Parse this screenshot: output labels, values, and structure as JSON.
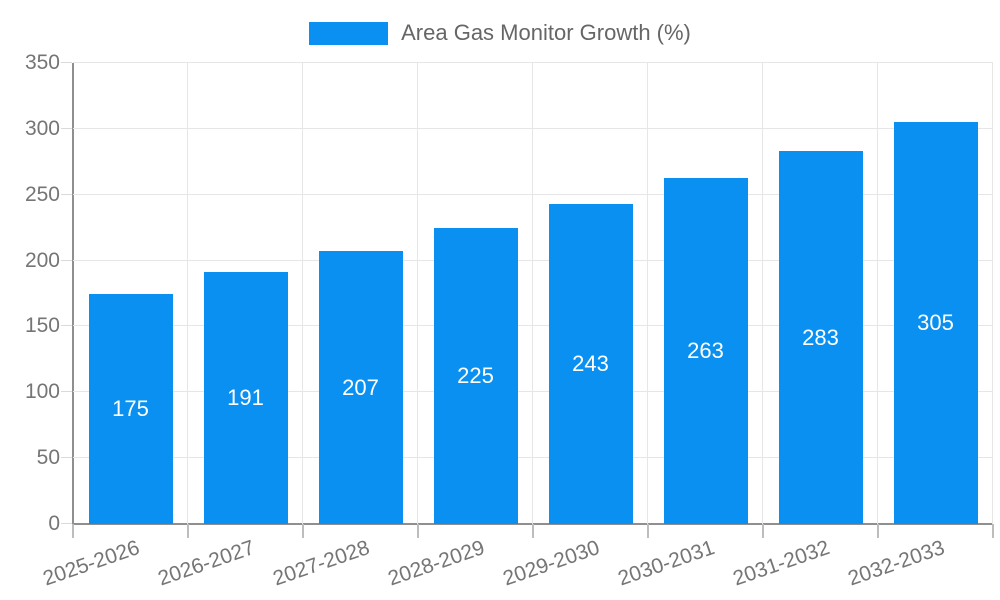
{
  "chart_data": {
    "type": "bar",
    "title": "",
    "xlabel": "",
    "ylabel": "",
    "legend": "Area Gas Monitor Growth (%)",
    "legend_position": "top",
    "grid": true,
    "categories": [
      "2025-2026",
      "2026-2027",
      "2027-2028",
      "2028-2029",
      "2029-2030",
      "2030-2031",
      "2031-2032",
      "2032-2033"
    ],
    "series": [
      {
        "name": "Area Gas Monitor Growth (%)",
        "values": [
          175,
          191,
          207,
          225,
          243,
          263,
          283,
          305
        ]
      }
    ],
    "bar_labels": [
      "175",
      "191",
      "207",
      "225",
      "243",
      "263",
      "283",
      "305"
    ],
    "ylim": [
      0,
      350
    ],
    "yticks": [
      0,
      50,
      100,
      150,
      200,
      250,
      300,
      350
    ]
  },
  "colors": {
    "bar": "#0a90f0",
    "bar_label": "#ffffff",
    "legend_text": "#666666",
    "tick_text": "#757575",
    "gridline": "#e6e6e6",
    "axis_line": "#8f8f8f",
    "background": "#ffffff"
  }
}
